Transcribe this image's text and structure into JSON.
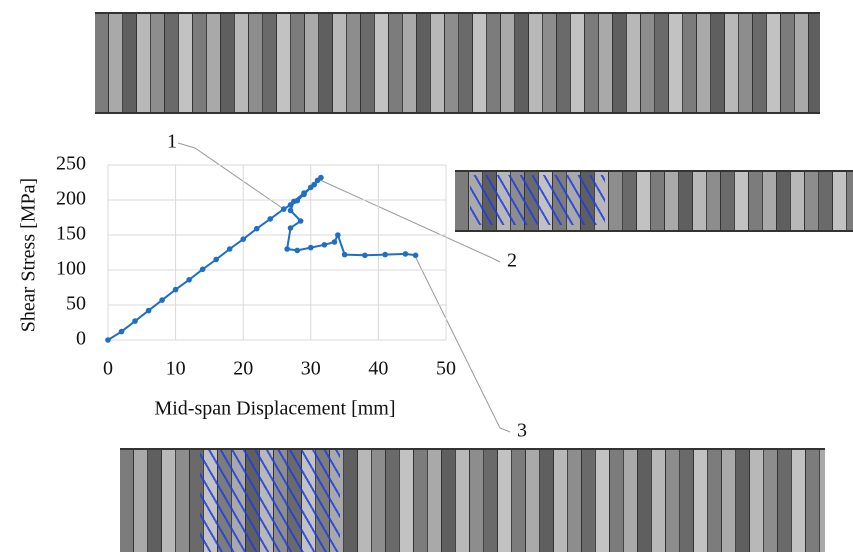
{
  "chart_data": {
    "type": "line",
    "x_label": "Mid-span Displacement [mm]",
    "y_label": "Shear Stress  [MPa]",
    "x": [
      0,
      2,
      4,
      6,
      8,
      10,
      12,
      14,
      16,
      18,
      20,
      22,
      24,
      26,
      27,
      28,
      29,
      30,
      31,
      31.5,
      30.5,
      29,
      27.5,
      27,
      28.5,
      27,
      26.5,
      28,
      30,
      32,
      33.5,
      34,
      35,
      38,
      41,
      44,
      45.5
    ],
    "values": [
      0,
      12,
      27,
      42,
      57,
      72,
      86,
      101,
      115,
      130,
      144,
      159,
      173,
      187,
      193,
      199,
      208,
      218,
      228,
      232,
      222,
      210,
      198,
      185,
      170,
      160,
      130,
      128,
      132,
      136,
      140,
      150,
      122,
      121,
      122,
      123,
      121
    ],
    "color": "#1f6fc4",
    "xlim": [
      0,
      50
    ],
    "ylim": [
      0,
      250
    ],
    "xticks": [
      0,
      10,
      20,
      30,
      40,
      50
    ],
    "yticks": [
      0,
      50,
      100,
      150,
      200,
      250
    ],
    "grid": true,
    "annotations": [
      "1",
      "2",
      "3"
    ]
  }
}
